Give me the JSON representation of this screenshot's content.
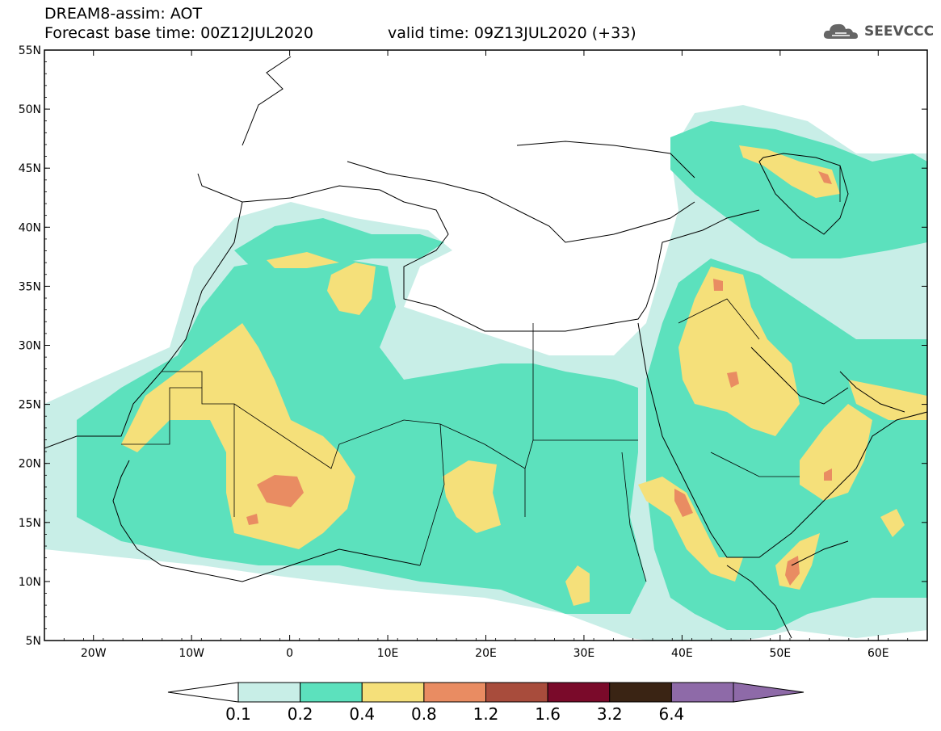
{
  "header": {
    "line1": "DREAM8-assim: AOT",
    "line2": "Forecast base time: 00Z12JUL2020",
    "line3": "valid time: 09Z13JUL2020 (+33)",
    "logo_text": "SEEVCCC"
  },
  "map": {
    "lon_range": [
      -25,
      65
    ],
    "lat_range": [
      5,
      55
    ],
    "lat_ticks": [
      "55N",
      "50N",
      "45N",
      "40N",
      "35N",
      "30N",
      "25N",
      "20N",
      "15N",
      "10N",
      "5N"
    ],
    "lon_ticks": [
      "20W",
      "10W",
      "0",
      "10E",
      "20E",
      "30E",
      "40E",
      "50E",
      "60E"
    ],
    "variable": "AOT"
  },
  "colorbar": {
    "labels": [
      "0.1",
      "0.2",
      "0.4",
      "0.8",
      "1.2",
      "1.6",
      "3.2",
      "6.4"
    ],
    "colors": [
      "#ffffff",
      "#c8eee7",
      "#5ce1bd",
      "#f5e07a",
      "#e98c62",
      "#a84c3c",
      "#7a0a2a",
      "#3a2414",
      "#8e6aa8"
    ]
  },
  "colors": {
    "level_0.1_0.2": "#c8eee7",
    "level_0.2_0.4": "#5ce1bd",
    "level_0.4_0.8": "#f5e07a",
    "level_0.8_1.2": "#e98c62",
    "coast": "#000000"
  }
}
